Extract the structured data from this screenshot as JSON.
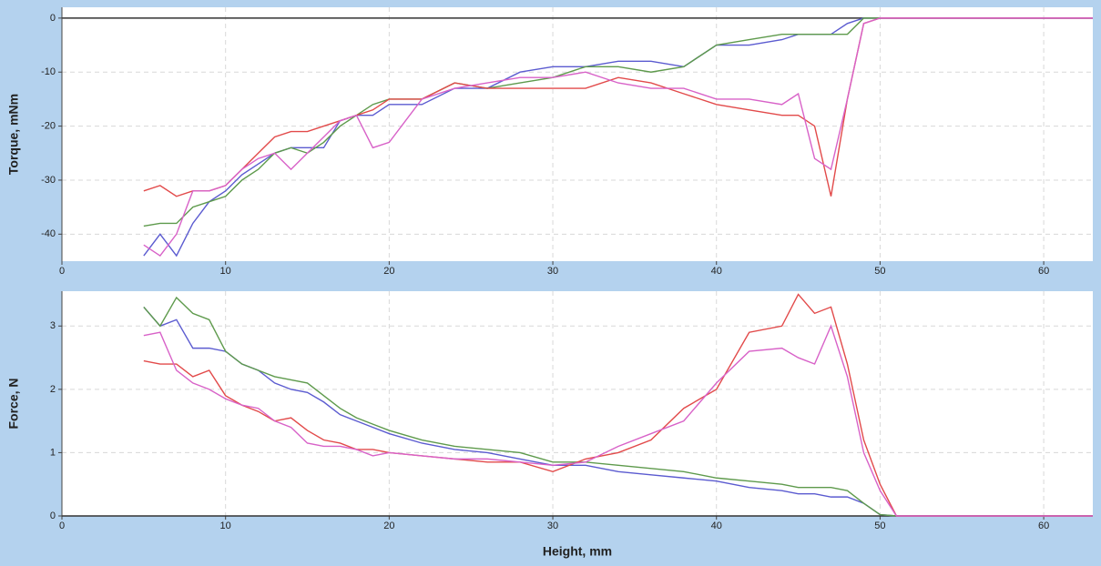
{
  "chart_data": [
    {
      "type": "line",
      "ylabel": "Torque, mNm",
      "x": [
        5,
        6,
        7,
        8,
        9,
        10,
        11,
        12,
        13,
        14,
        15,
        16,
        17,
        18,
        19,
        20,
        22,
        24,
        26,
        28,
        30,
        32,
        34,
        36,
        38,
        40,
        42,
        44,
        45,
        46,
        47,
        48,
        49,
        50,
        51,
        63
      ],
      "series": [
        {
          "color": "#5b5bd0",
          "values": [
            -44,
            -40,
            -44,
            -38,
            -34,
            -32,
            -29,
            -27,
            -25,
            -24,
            -24,
            -24,
            -19,
            -18,
            -18,
            -16,
            -16,
            -13,
            -13,
            -10,
            -9,
            -9,
            -8,
            -8,
            -9,
            -5,
            -5,
            -4,
            -3,
            -3,
            -3,
            -1,
            0,
            0,
            0,
            0
          ]
        },
        {
          "color": "#5e9a4c",
          "values": [
            -38.5,
            -38,
            -38,
            -35,
            -34,
            -33,
            -30,
            -28,
            -25,
            -24,
            -25,
            -23,
            -20,
            -18,
            -16,
            -15,
            -15,
            -12,
            -13,
            -12,
            -11,
            -9,
            -9,
            -10,
            -9,
            -5,
            -4,
            -3,
            -3,
            -3,
            -3,
            -3,
            0,
            0,
            0,
            0
          ]
        },
        {
          "color": "#e24a4a",
          "values": [
            -32,
            -31,
            -33,
            -32,
            -32,
            -31,
            -28,
            -25,
            -22,
            -21,
            -21,
            -20,
            -19,
            -18,
            -17,
            -15,
            -15,
            -12,
            -13,
            -13,
            -13,
            -13,
            -11,
            -12,
            -14,
            -16,
            -17,
            -18,
            -18,
            -20,
            -33,
            -15,
            -1,
            0,
            0,
            0
          ]
        },
        {
          "color": "#d862c8",
          "values": [
            -42,
            -44,
            -40,
            -32,
            -32,
            -31,
            -28,
            -26,
            -25,
            -28,
            -25,
            -22,
            -19,
            -18,
            -24,
            -23,
            -15,
            -13,
            -12,
            -11,
            -11,
            -10,
            -12,
            -13,
            -13,
            -15,
            -15,
            -16,
            -14,
            -26,
            -28,
            -15,
            -1,
            0,
            0,
            0
          ]
        }
      ],
      "xlim": [
        0,
        63
      ],
      "ylim": [
        -45,
        2
      ],
      "xticks": [
        0,
        10,
        20,
        30,
        40,
        50,
        60
      ],
      "yticks": [
        0,
        -10,
        -20,
        -30,
        -40
      ],
      "grid": true
    },
    {
      "type": "line",
      "ylabel": "Force, N",
      "xlabel": "Height, mm",
      "x": [
        5,
        6,
        7,
        8,
        9,
        10,
        11,
        12,
        13,
        14,
        15,
        16,
        17,
        18,
        19,
        20,
        22,
        24,
        26,
        28,
        30,
        32,
        34,
        36,
        38,
        40,
        42,
        44,
        45,
        46,
        47,
        48,
        49,
        50,
        51,
        63
      ],
      "series": [
        {
          "color": "#5b5bd0",
          "values": [
            3.3,
            3.0,
            3.1,
            2.65,
            2.65,
            2.6,
            2.4,
            2.3,
            2.1,
            2.0,
            1.95,
            1.8,
            1.6,
            1.5,
            1.4,
            1.3,
            1.15,
            1.05,
            1.0,
            0.9,
            0.8,
            0.8,
            0.7,
            0.65,
            0.6,
            0.55,
            0.45,
            0.4,
            0.35,
            0.35,
            0.3,
            0.3,
            0.2,
            0.02,
            0,
            0
          ]
        },
        {
          "color": "#5e9a4c",
          "values": [
            3.3,
            3.0,
            3.45,
            3.2,
            3.1,
            2.6,
            2.4,
            2.3,
            2.2,
            2.15,
            2.1,
            1.9,
            1.7,
            1.55,
            1.45,
            1.35,
            1.2,
            1.1,
            1.05,
            1.0,
            0.85,
            0.85,
            0.8,
            0.75,
            0.7,
            0.6,
            0.55,
            0.5,
            0.45,
            0.45,
            0.45,
            0.4,
            0.2,
            0.02,
            0,
            0
          ]
        },
        {
          "color": "#e24a4a",
          "values": [
            2.45,
            2.4,
            2.4,
            2.2,
            2.3,
            1.9,
            1.75,
            1.65,
            1.5,
            1.55,
            1.35,
            1.2,
            1.15,
            1.05,
            1.05,
            1.0,
            0.95,
            0.9,
            0.85,
            0.85,
            0.7,
            0.9,
            1.0,
            1.2,
            1.7,
            2.0,
            2.9,
            3.0,
            3.5,
            3.2,
            3.3,
            2.4,
            1.2,
            0.5,
            0,
            0
          ]
        },
        {
          "color": "#d862c8",
          "values": [
            2.85,
            2.9,
            2.3,
            2.1,
            2.0,
            1.85,
            1.75,
            1.7,
            1.5,
            1.4,
            1.15,
            1.1,
            1.1,
            1.05,
            0.95,
            1.0,
            0.95,
            0.9,
            0.9,
            0.85,
            0.8,
            0.85,
            1.1,
            1.3,
            1.5,
            2.1,
            2.6,
            2.65,
            2.5,
            2.4,
            3.0,
            2.2,
            1.0,
            0.4,
            0,
            0
          ]
        }
      ],
      "xlim": [
        0,
        63
      ],
      "ylim": [
        0,
        3.55
      ],
      "xticks": [
        0,
        10,
        20,
        30,
        40,
        50,
        60
      ],
      "yticks": [
        0,
        1,
        2,
        3
      ],
      "grid": true
    }
  ]
}
